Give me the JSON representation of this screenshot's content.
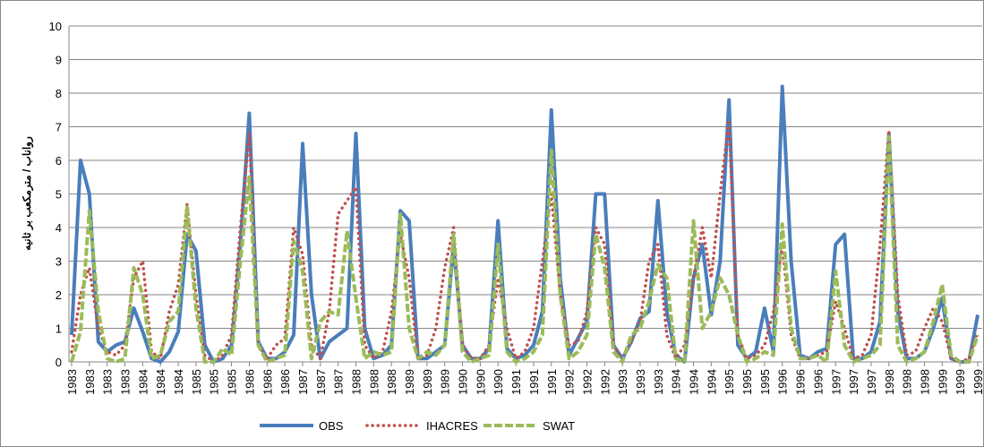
{
  "chart_data": {
    "type": "line",
    "y_label": "رواناب / مترمکعب بر ثانیه",
    "categories": [
      "1983",
      null,
      "1983",
      null,
      "1983",
      null,
      "1983",
      null,
      "1984",
      null,
      "1984",
      null,
      "1984",
      null,
      "1985",
      null,
      "1985",
      null,
      "1985",
      null,
      "1986",
      null,
      "1986",
      null,
      "1986",
      null,
      "1987",
      null,
      "1987",
      null,
      "1987",
      null,
      "1988",
      null,
      "1988",
      null,
      "1988",
      null,
      "1989",
      null,
      "1989",
      null,
      "1989",
      null,
      "1990",
      null,
      "1990",
      null,
      "1990",
      null,
      "1991",
      null,
      "1991",
      null,
      "1991",
      null,
      "1992",
      null,
      "1992",
      null,
      "1992",
      null,
      "1993",
      null,
      "1993",
      null,
      "1993",
      null,
      "1994",
      null,
      "1994",
      null,
      "1994",
      null,
      "1995",
      null,
      "1995",
      null,
      "1995",
      null,
      "1996",
      null,
      "1996",
      null,
      "1996",
      null,
      "1997",
      null,
      "1997",
      null,
      "1997",
      null,
      "1998",
      null,
      "1998",
      null,
      "1998",
      null,
      "1999",
      null,
      "1999",
      null,
      "1999"
    ],
    "series": [
      {
        "name": "OBS",
        "color": "#4a7ebb",
        "style": "solid",
        "values": [
          0.8,
          6.0,
          5.0,
          0.6,
          0.3,
          0.5,
          0.6,
          1.6,
          0.9,
          0.1,
          0,
          0.3,
          0.9,
          3.8,
          3.3,
          0.5,
          0,
          0.1,
          0.5,
          3.5,
          7.4,
          0.6,
          0.1,
          0.1,
          0.3,
          0.8,
          6.5,
          2.0,
          0.1,
          0.6,
          0.8,
          1.0,
          6.8,
          1.0,
          0.1,
          0.2,
          0.5,
          4.5,
          4.2,
          0.1,
          0.1,
          0.3,
          0.5,
          3.5,
          0.5,
          0.1,
          0.1,
          0.4,
          4.2,
          0.4,
          0.1,
          0.2,
          0.5,
          1.5,
          7.5,
          2.5,
          0.2,
          0.7,
          1.2,
          5.0,
          5.0,
          0.5,
          0.1,
          0.6,
          1.3,
          1.5,
          4.8,
          1.5,
          0.2,
          0,
          2.5,
          3.5,
          1.4,
          3.0,
          7.8,
          0.5,
          0.1,
          0.3,
          1.6,
          0.3,
          8.2,
          3.0,
          0.2,
          0.1,
          0.3,
          0.4,
          3.5,
          3.8,
          0.1,
          0.1,
          0.3,
          1.2,
          6.8,
          1.5,
          0.1,
          0.1,
          0.3,
          1.0,
          1.9,
          0.1,
          0,
          0,
          1.4
        ]
      },
      {
        "name": "IHACRES",
        "color": "#c0504d",
        "style": "dotted",
        "values": [
          0.3,
          2.0,
          2.8,
          1.0,
          0.3,
          0.2,
          0.5,
          2.5,
          3.0,
          0.3,
          0.1,
          1.5,
          2.3,
          4.7,
          2.0,
          0.2,
          0,
          0.2,
          0.8,
          4.0,
          6.8,
          0.5,
          0.1,
          0.5,
          0.7,
          4.0,
          3.2,
          0.5,
          0.1,
          1.5,
          4.4,
          4.8,
          5.2,
          0.5,
          0.1,
          0.3,
          1.5,
          3.8,
          2.5,
          0.1,
          0.2,
          1.0,
          2.8,
          4.0,
          0.5,
          0.1,
          0.1,
          0.5,
          2.5,
          1.0,
          0.1,
          0.3,
          1.0,
          3.0,
          5.0,
          2.0,
          0.5,
          0.6,
          1.5,
          4.0,
          3.5,
          0.5,
          0.1,
          0.6,
          1.2,
          3.0,
          3.5,
          0.8,
          0.1,
          0.5,
          2.5,
          4.0,
          2.5,
          5.0,
          7.2,
          0.8,
          0.1,
          0.2,
          0.5,
          1.5,
          3.5,
          0.8,
          0.1,
          0.1,
          0.2,
          0.3,
          1.8,
          1.0,
          0.1,
          0.2,
          0.8,
          3.5,
          6.9,
          2.0,
          0.2,
          0.3,
          1.0,
          1.6,
          1.2,
          0.1,
          0,
          0.1,
          0.9
        ]
      },
      {
        "name": "SWAT",
        "color": "#9bbb59",
        "style": "dashed",
        "values": [
          0,
          0.9,
          4.5,
          1.5,
          0.1,
          0,
          0.1,
          2.8,
          2.0,
          0.1,
          0.2,
          1.2,
          1.5,
          4.6,
          1.6,
          0,
          0,
          0.4,
          0.2,
          3.0,
          5.5,
          0.5,
          0,
          0.1,
          0.2,
          3.6,
          2.7,
          0.1,
          1.2,
          1.5,
          1.4,
          3.9,
          1.9,
          0.1,
          0.3,
          0.2,
          0.3,
          4.4,
          1.0,
          0.1,
          0.3,
          0.2,
          0.5,
          3.8,
          0.3,
          0,
          0.1,
          0.2,
          3.5,
          0.3,
          0,
          0.1,
          0.3,
          0.8,
          6.3,
          2.0,
          0.1,
          0.3,
          0.8,
          3.8,
          2.8,
          0.3,
          0,
          0.8,
          1.0,
          1.8,
          2.9,
          2.5,
          0.1,
          0,
          4.2,
          1.0,
          1.5,
          2.5,
          2.0,
          0.8,
          0,
          0.1,
          0.3,
          0.2,
          4.1,
          1.0,
          0.1,
          0.1,
          0.2,
          0,
          2.7,
          0.5,
          0,
          0.1,
          0.2,
          0.5,
          6.7,
          0.5,
          0,
          0.1,
          0.3,
          1.2,
          2.3,
          0.2,
          0,
          0,
          0.8
        ]
      }
    ],
    "ylim": [
      0,
      10
    ],
    "yticks": [
      0,
      1,
      2,
      3,
      4,
      5,
      6,
      7,
      8,
      9,
      10
    ],
    "grid": true,
    "legend": "bottom"
  }
}
